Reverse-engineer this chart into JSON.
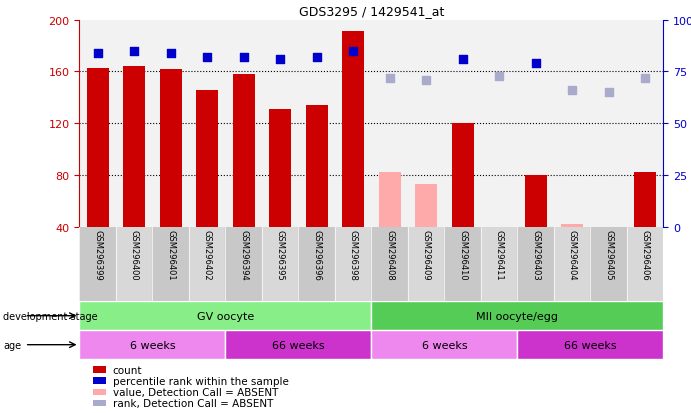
{
  "title": "GDS3295 / 1429541_at",
  "samples": [
    "GSM296399",
    "GSM296400",
    "GSM296401",
    "GSM296402",
    "GSM296394",
    "GSM296395",
    "GSM296396",
    "GSM296398",
    "GSM296408",
    "GSM296409",
    "GSM296410",
    "GSM296411",
    "GSM296403",
    "GSM296404",
    "GSM296405",
    "GSM296406"
  ],
  "count_values": [
    163,
    164,
    162,
    146,
    158,
    131,
    134,
    191,
    null,
    null,
    120,
    null,
    80,
    null,
    null,
    82
  ],
  "count_absent": [
    null,
    null,
    null,
    null,
    null,
    null,
    null,
    null,
    82,
    73,
    null,
    null,
    null,
    42,
    40,
    null
  ],
  "percentile_values": [
    84,
    85,
    84,
    82,
    82,
    81,
    82,
    85,
    null,
    null,
    81,
    null,
    79,
    null,
    null,
    null
  ],
  "percentile_absent": [
    null,
    null,
    null,
    null,
    null,
    null,
    null,
    null,
    72,
    71,
    null,
    73,
    null,
    66,
    65,
    72
  ],
  "ylim_left": [
    40,
    200
  ],
  "ylim_right": [
    0,
    100
  ],
  "yticks_left": [
    40,
    80,
    120,
    160,
    200
  ],
  "yticks_right": [
    0,
    25,
    50,
    75,
    100
  ],
  "bar_color_present": "#cc0000",
  "bar_color_absent": "#ffaaaa",
  "dot_color_present": "#0000cc",
  "dot_color_absent": "#aaaacc",
  "stage_groups": [
    {
      "label": "GV oocyte",
      "start": 0,
      "end": 8,
      "color": "#88ee88"
    },
    {
      "label": "MII oocyte/egg",
      "start": 8,
      "end": 16,
      "color": "#55cc55"
    }
  ],
  "age_groups": [
    {
      "label": "6 weeks",
      "start": 0,
      "end": 4,
      "color": "#ee88ee"
    },
    {
      "label": "66 weeks",
      "start": 4,
      "end": 8,
      "color": "#cc33cc"
    },
    {
      "label": "6 weeks",
      "start": 8,
      "end": 12,
      "color": "#ee88ee"
    },
    {
      "label": "66 weeks",
      "start": 12,
      "end": 16,
      "color": "#cc33cc"
    }
  ],
  "legend_items": [
    {
      "label": "count",
      "color": "#cc0000"
    },
    {
      "label": "percentile rank within the sample",
      "color": "#0000cc"
    },
    {
      "label": "value, Detection Call = ABSENT",
      "color": "#ffaaaa"
    },
    {
      "label": "rank, Detection Call = ABSENT",
      "color": "#aaaacc"
    }
  ],
  "background_color": "#ffffff",
  "tick_color_left": "#cc0000",
  "tick_color_right": "#0000cc",
  "chart_bg": "#f2f2f2",
  "label_bg": "#cccccc"
}
